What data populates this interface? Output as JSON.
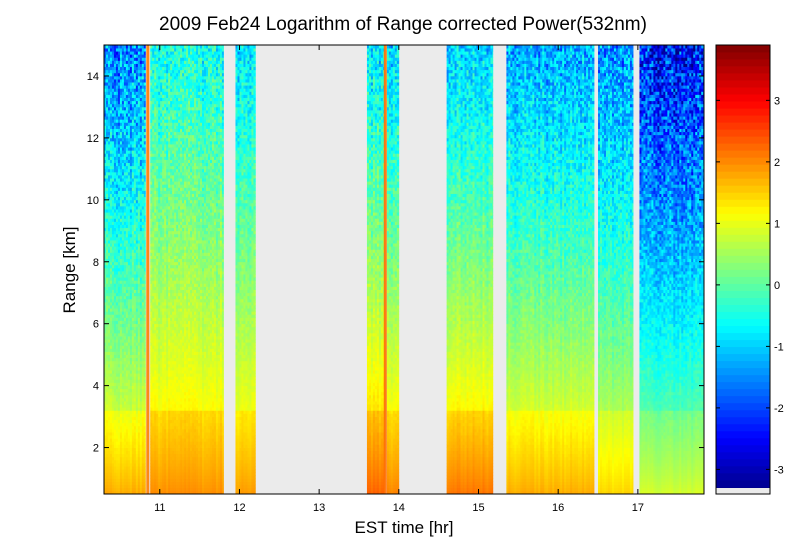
{
  "chart_data": {
    "type": "heatmap",
    "title": "2009 Feb24  Logarithm of Range corrected Power(532nm)",
    "xlabel": "EST time [hr]",
    "ylabel": "Range [km]",
    "xlim": [
      10.3,
      17.83
    ],
    "ylim": [
      0.5,
      15
    ],
    "xticks": [
      11,
      12,
      13,
      14,
      15,
      16,
      17
    ],
    "yticks": [
      2,
      4,
      6,
      8,
      10,
      12,
      14
    ],
    "colorbar": {
      "colormap": "jet",
      "clim": [
        -3.4,
        3.9
      ],
      "ticks": [
        -3,
        -2,
        -1,
        0,
        1,
        2,
        3
      ]
    },
    "no_data_color": "#ebebeb",
    "data_segments": [
      {
        "start": 10.3,
        "end": 10.82,
        "low_level": 1.5,
        "top_level": -1.6,
        "noise": 0.9
      },
      {
        "start": 10.88,
        "end": 11.8,
        "low_level": 1.7,
        "top_level": -0.6,
        "noise": 0.6
      },
      {
        "start": 11.95,
        "end": 12.2,
        "low_level": 1.6,
        "top_level": -0.9,
        "noise": 0.6
      },
      {
        "start": 13.6,
        "end": 13.82,
        "low_level": 2.0,
        "top_level": -0.9,
        "noise": 0.7
      },
      {
        "start": 13.85,
        "end": 14.0,
        "low_level": 1.8,
        "top_level": -0.9,
        "noise": 0.7
      },
      {
        "start": 14.6,
        "end": 15.18,
        "low_level": 1.9,
        "top_level": -1.0,
        "noise": 0.6
      },
      {
        "start": 15.35,
        "end": 16.45,
        "low_level": 1.5,
        "top_level": -1.3,
        "noise": 0.7
      },
      {
        "start": 16.5,
        "end": 16.94,
        "low_level": 1.2,
        "top_level": -1.5,
        "noise": 0.8
      },
      {
        "start": 17.02,
        "end": 17.83,
        "low_level": 0.6,
        "top_level": -2.4,
        "noise": 1.2
      }
    ],
    "bright_streaks": [
      {
        "time": 10.85,
        "level": 2.1
      },
      {
        "time": 13.83,
        "level": 2.2
      }
    ]
  }
}
